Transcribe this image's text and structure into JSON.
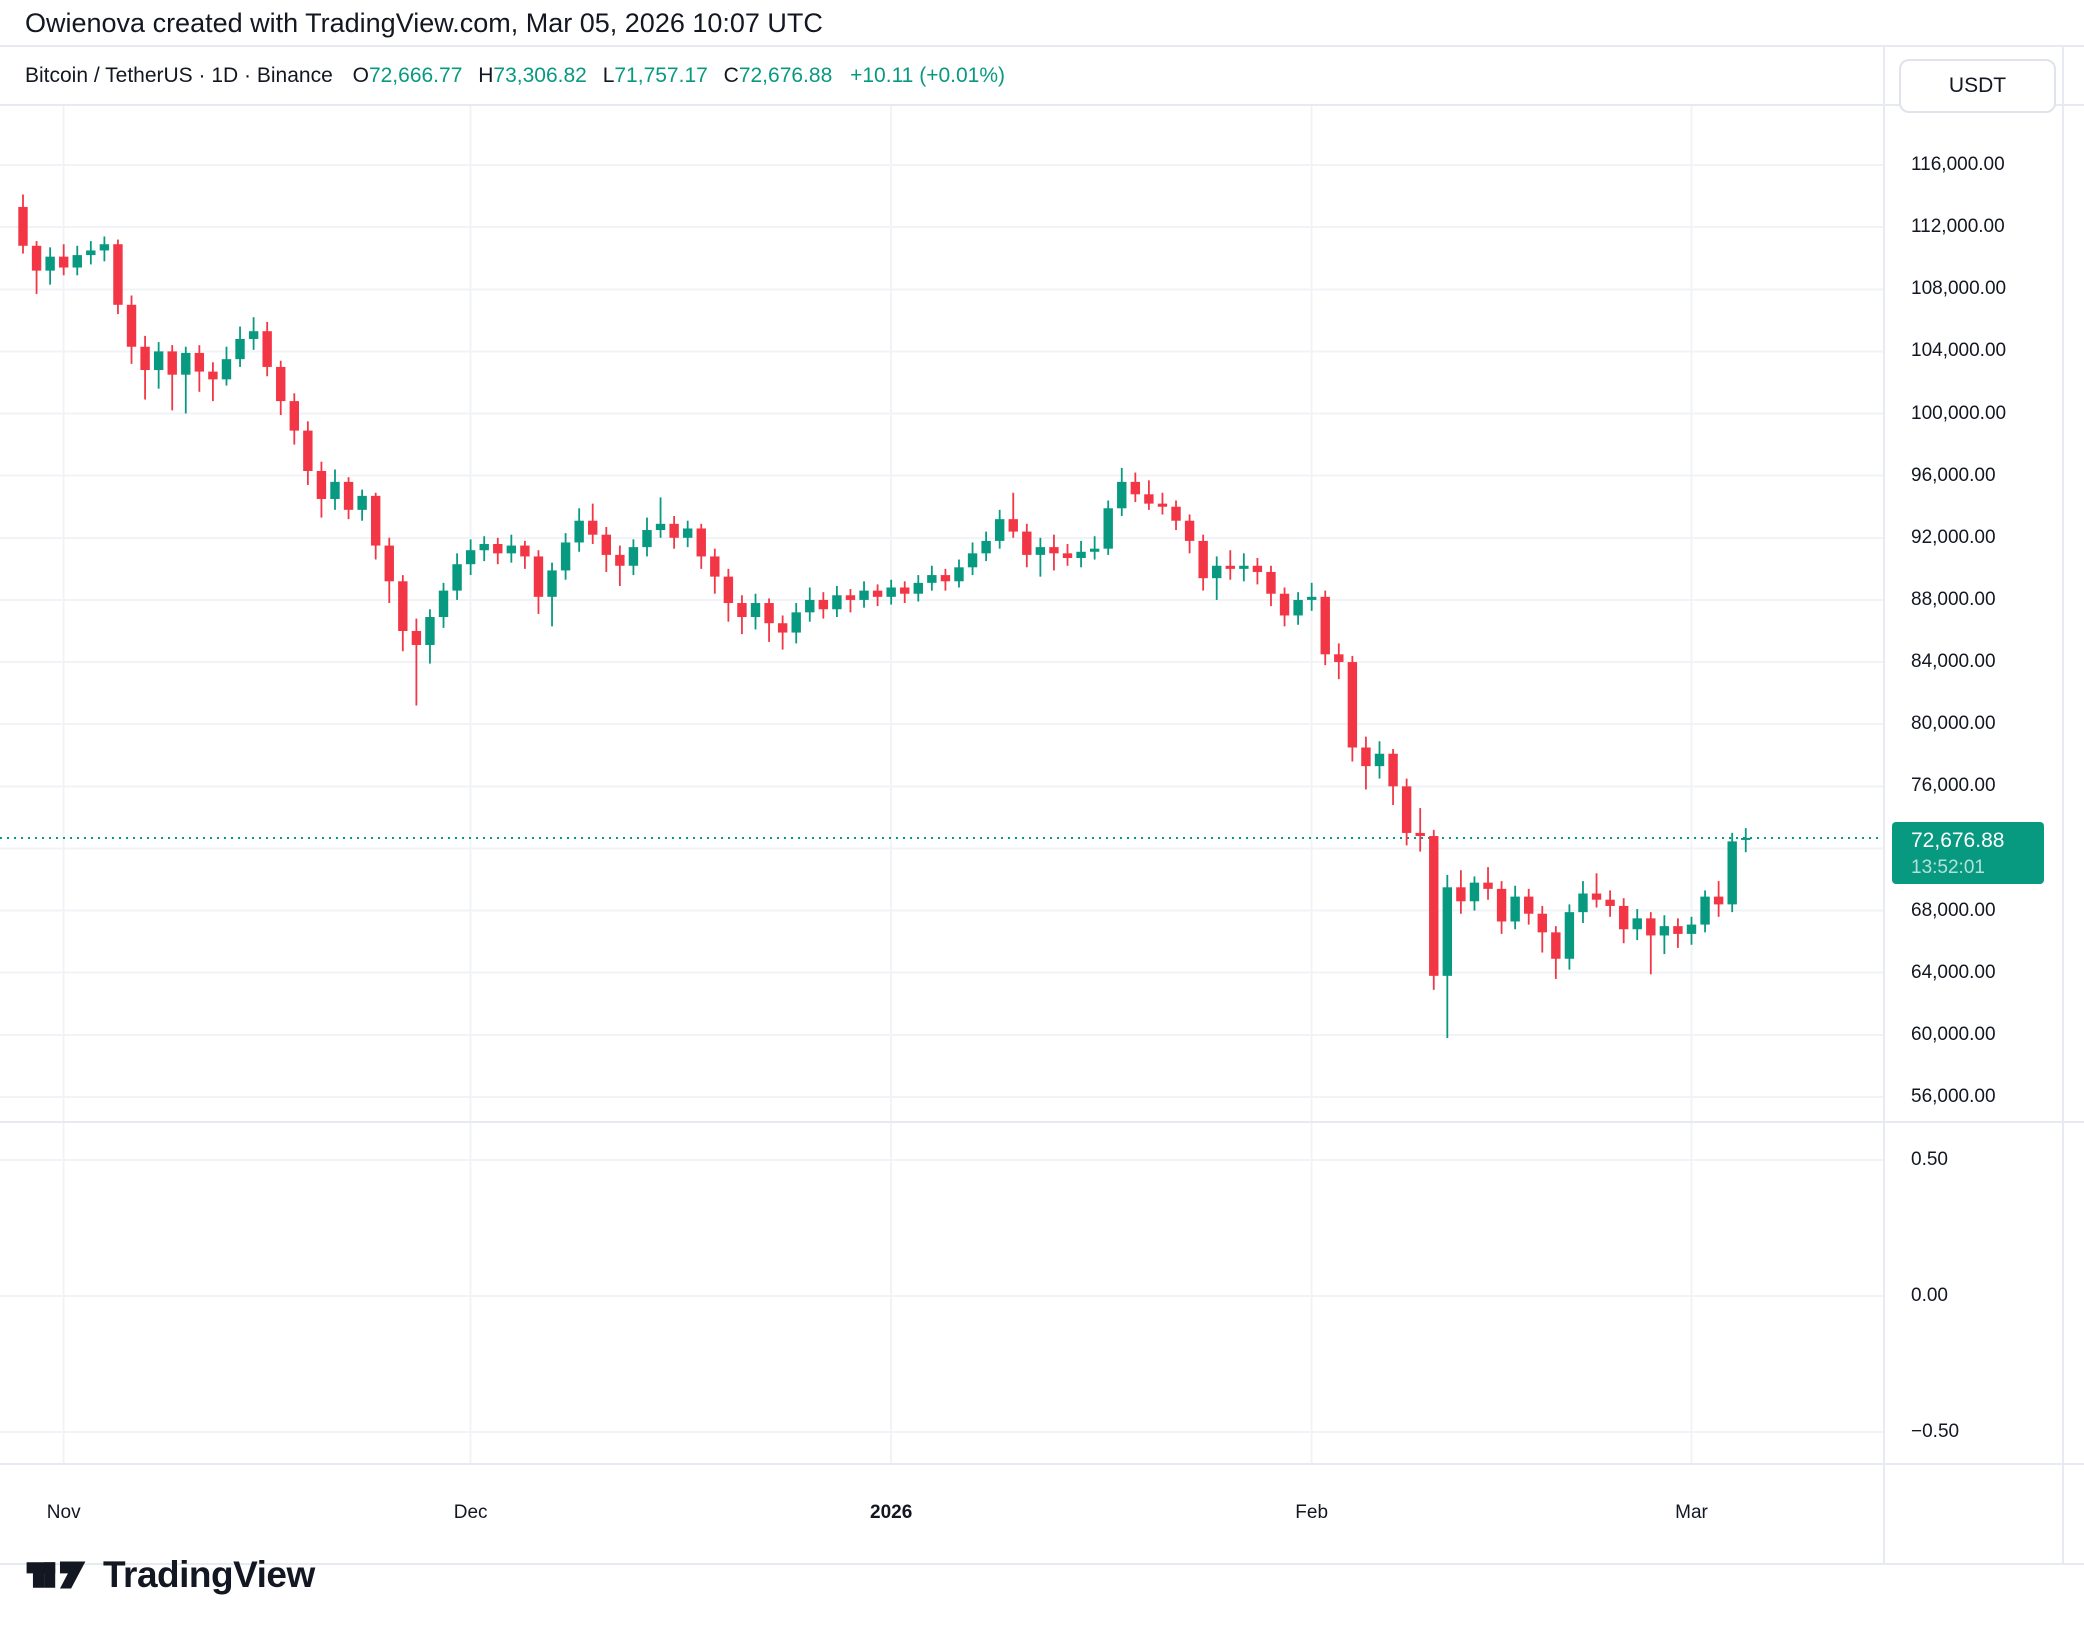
{
  "attribution": "Owienova created with TradingView.com, Mar 05, 2026 10:07 UTC",
  "legend": {
    "symbol_title": "Bitcoin / TetherUS · 1D · Binance",
    "open_label": "O",
    "open": "72,666.77",
    "high_label": "H",
    "high": "73,306.82",
    "low_label": "L",
    "low": "71,757.17",
    "close_label": "C",
    "close": "72,676.88",
    "change": "+10.11 (+0.01%)"
  },
  "unit_button": "USDT",
  "price_label": {
    "price": "72,676.88",
    "countdown": "13:52:01"
  },
  "footer": {
    "brand": "TradingView"
  },
  "colors": {
    "up": "#089981",
    "down": "#f23645",
    "text": "#131722",
    "grid": "#f2f3f7",
    "border": "#e7eaf0",
    "current_line": "#089981"
  },
  "chart_data": {
    "type": "candlestick",
    "title": "Bitcoin / TetherUS",
    "interval": "1D",
    "exchange": "Binance",
    "quote_unit": "USDT",
    "current_price": 72676.88,
    "countdown": "13:52:01",
    "price_axis_ticks": [
      116000,
      112000,
      108000,
      104000,
      100000,
      96000,
      92000,
      88000,
      84000,
      80000,
      76000,
      72000,
      68000,
      64000,
      60000,
      56000
    ],
    "price_axis_range": [
      54000,
      118500
    ],
    "indicator_axis_ticks": [
      {
        "value": 0.5,
        "label": "0.50"
      },
      {
        "value": 0.0,
        "label": "0.00"
      },
      {
        "value": -0.5,
        "label": "−0.50"
      }
    ],
    "time_ticks": [
      {
        "label": "Nov",
        "index": 3,
        "bold": false
      },
      {
        "label": "Dec",
        "index": 33,
        "bold": false
      },
      {
        "label": "2026",
        "index": 64,
        "bold": true
      },
      {
        "label": "Feb",
        "index": 95,
        "bold": false
      },
      {
        "label": "Mar",
        "index": 123,
        "bold": false
      }
    ],
    "ohlc_columns": [
      "date",
      "open",
      "high",
      "low",
      "close"
    ],
    "ohlc": [
      [
        "2025-10-29",
        113300,
        114100,
        110300,
        110800
      ],
      [
        "2025-10-30",
        110800,
        111100,
        107700,
        109200
      ],
      [
        "2025-10-31",
        109200,
        110700,
        108300,
        110100
      ],
      [
        "2025-11-01",
        110100,
        110900,
        108900,
        109400
      ],
      [
        "2025-11-02",
        109400,
        110800,
        108900,
        110200
      ],
      [
        "2025-11-03",
        110200,
        111100,
        109600,
        110500
      ],
      [
        "2025-11-04",
        110500,
        111400,
        109800,
        110900
      ],
      [
        "2025-11-05",
        110900,
        111200,
        106400,
        107000
      ],
      [
        "2025-11-06",
        107000,
        107600,
        103200,
        104300
      ],
      [
        "2025-11-07",
        104300,
        105000,
        100900,
        102800
      ],
      [
        "2025-11-08",
        102800,
        104600,
        101600,
        104000
      ],
      [
        "2025-11-09",
        104000,
        104400,
        100200,
        102500
      ],
      [
        "2025-11-10",
        102500,
        104300,
        100000,
        103900
      ],
      [
        "2025-11-11",
        103900,
        104400,
        101400,
        102700
      ],
      [
        "2025-11-12",
        102700,
        103300,
        100800,
        102200
      ],
      [
        "2025-11-13",
        102200,
        104300,
        101800,
        103500
      ],
      [
        "2025-11-14",
        103500,
        105600,
        103000,
        104800
      ],
      [
        "2025-11-15",
        104800,
        106200,
        104100,
        105300
      ],
      [
        "2025-11-16",
        105300,
        105900,
        102400,
        103000
      ],
      [
        "2025-11-17",
        103000,
        103400,
        99900,
        100800
      ],
      [
        "2025-11-18",
        100800,
        101300,
        98000,
        98900
      ],
      [
        "2025-11-19",
        98900,
        99500,
        95400,
        96300
      ],
      [
        "2025-11-20",
        96300,
        96900,
        93300,
        94500
      ],
      [
        "2025-11-21",
        94500,
        96400,
        93800,
        95600
      ],
      [
        "2025-11-22",
        95600,
        95900,
        93200,
        93800
      ],
      [
        "2025-11-23",
        93800,
        95100,
        93100,
        94700
      ],
      [
        "2025-11-24",
        94700,
        94900,
        90600,
        91500
      ],
      [
        "2025-11-25",
        91500,
        92000,
        87800,
        89200
      ],
      [
        "2025-11-26",
        89200,
        89600,
        84700,
        86000
      ],
      [
        "2025-11-27",
        86000,
        86800,
        81200,
        85100
      ],
      [
        "2025-11-28",
        85100,
        87400,
        83900,
        86900
      ],
      [
        "2025-11-29",
        86900,
        89100,
        86200,
        88600
      ],
      [
        "2025-11-30",
        88600,
        91000,
        88000,
        90300
      ],
      [
        "2025-12-01",
        90300,
        91900,
        89600,
        91200
      ],
      [
        "2025-12-02",
        91200,
        92100,
        90500,
        91600
      ],
      [
        "2025-12-03",
        91600,
        92000,
        90300,
        91000
      ],
      [
        "2025-12-04",
        91000,
        92200,
        90400,
        91500
      ],
      [
        "2025-12-05",
        91500,
        91800,
        90000,
        90800
      ],
      [
        "2025-12-06",
        90800,
        91200,
        87100,
        88200
      ],
      [
        "2025-12-07",
        88200,
        90400,
        86300,
        89900
      ],
      [
        "2025-12-08",
        89900,
        92300,
        89300,
        91700
      ],
      [
        "2025-12-09",
        91700,
        93900,
        91100,
        93100
      ],
      [
        "2025-12-10",
        93100,
        94200,
        91600,
        92200
      ],
      [
        "2025-12-11",
        92200,
        92700,
        89800,
        90900
      ],
      [
        "2025-12-12",
        90900,
        91500,
        88900,
        90200
      ],
      [
        "2025-12-13",
        90200,
        91900,
        89600,
        91400
      ],
      [
        "2025-12-14",
        91400,
        93300,
        90800,
        92500
      ],
      [
        "2025-12-15",
        92500,
        94600,
        92000,
        92900
      ],
      [
        "2025-12-16",
        92900,
        93400,
        91300,
        92000
      ],
      [
        "2025-12-17",
        92000,
        93100,
        91400,
        92600
      ],
      [
        "2025-12-18",
        92600,
        92900,
        90000,
        90800
      ],
      [
        "2025-12-19",
        90800,
        91300,
        88400,
        89500
      ],
      [
        "2025-12-20",
        89500,
        90000,
        86600,
        87800
      ],
      [
        "2025-12-21",
        87800,
        88300,
        85800,
        86900
      ],
      [
        "2025-12-22",
        86900,
        88400,
        86100,
        87800
      ],
      [
        "2025-12-23",
        87800,
        88100,
        85300,
        86500
      ],
      [
        "2025-12-24",
        86500,
        87000,
        84800,
        85900
      ],
      [
        "2025-12-25",
        85900,
        87800,
        85200,
        87200
      ],
      [
        "2025-12-26",
        87200,
        88800,
        86600,
        88000
      ],
      [
        "2025-12-27",
        88000,
        88500,
        86800,
        87400
      ],
      [
        "2025-12-28",
        87400,
        88900,
        86900,
        88300
      ],
      [
        "2025-12-29",
        88300,
        88700,
        87200,
        88000
      ],
      [
        "2025-12-30",
        88000,
        89200,
        87500,
        88600
      ],
      [
        "2025-12-31",
        88600,
        89000,
        87600,
        88200
      ],
      [
        "2026-01-01",
        88200,
        89300,
        87700,
        88800
      ],
      [
        "2026-01-02",
        88800,
        89200,
        87800,
        88400
      ],
      [
        "2026-01-03",
        88400,
        89600,
        87900,
        89100
      ],
      [
        "2026-01-04",
        89100,
        90200,
        88600,
        89600
      ],
      [
        "2026-01-05",
        89600,
        90000,
        88600,
        89200
      ],
      [
        "2026-01-06",
        89200,
        90600,
        88800,
        90100
      ],
      [
        "2026-01-07",
        90100,
        91700,
        89600,
        91000
      ],
      [
        "2026-01-08",
        91000,
        92400,
        90500,
        91800
      ],
      [
        "2026-01-09",
        91800,
        93800,
        91300,
        93200
      ],
      [
        "2026-01-10",
        93200,
        94900,
        92000,
        92400
      ],
      [
        "2026-01-11",
        92400,
        92900,
        90100,
        90900
      ],
      [
        "2026-01-12",
        90900,
        92000,
        89500,
        91400
      ],
      [
        "2026-01-13",
        91400,
        92200,
        89900,
        91000
      ],
      [
        "2026-01-14",
        91000,
        91600,
        90200,
        90700
      ],
      [
        "2026-01-15",
        90700,
        91800,
        90100,
        91100
      ],
      [
        "2026-01-16",
        91100,
        92100,
        90600,
        91300
      ],
      [
        "2026-01-17",
        91300,
        94400,
        90900,
        93900
      ],
      [
        "2026-01-18",
        93900,
        96500,
        93400,
        95600
      ],
      [
        "2026-01-19",
        95600,
        96200,
        94300,
        94800
      ],
      [
        "2026-01-20",
        94800,
        95700,
        93800,
        94200
      ],
      [
        "2026-01-21",
        94200,
        94900,
        93500,
        94000
      ],
      [
        "2026-01-22",
        94000,
        94400,
        92500,
        93100
      ],
      [
        "2026-01-23",
        93100,
        93500,
        91000,
        91800
      ],
      [
        "2026-01-24",
        91800,
        92200,
        88600,
        89400
      ],
      [
        "2026-01-25",
        89400,
        90800,
        88000,
        90200
      ],
      [
        "2026-01-26",
        90200,
        91200,
        89300,
        90000
      ],
      [
        "2026-01-27",
        90000,
        91000,
        89200,
        90200
      ],
      [
        "2026-01-28",
        90200,
        90700,
        89000,
        89800
      ],
      [
        "2026-01-29",
        89800,
        90200,
        87600,
        88400
      ],
      [
        "2026-01-30",
        88400,
        88800,
        86300,
        87000
      ],
      [
        "2026-01-31",
        87000,
        88500,
        86400,
        88000
      ],
      [
        "2026-02-01",
        88000,
        89100,
        87300,
        88200
      ],
      [
        "2026-02-02",
        88200,
        88600,
        83800,
        84500
      ],
      [
        "2026-02-03",
        84500,
        85200,
        82900,
        84000
      ],
      [
        "2026-02-04",
        84000,
        84400,
        77600,
        78500
      ],
      [
        "2026-02-05",
        78500,
        79200,
        75800,
        77300
      ],
      [
        "2026-02-06",
        77300,
        78900,
        76500,
        78100
      ],
      [
        "2026-02-07",
        78100,
        78400,
        74800,
        76000
      ],
      [
        "2026-02-08",
        76000,
        76500,
        72200,
        73000
      ],
      [
        "2026-02-09",
        73000,
        74600,
        71800,
        72800
      ],
      [
        "2026-02-10",
        72800,
        73200,
        62900,
        63800
      ],
      [
        "2026-02-11",
        63800,
        70300,
        59800,
        69500
      ],
      [
        "2026-02-12",
        69500,
        70600,
        67800,
        68600
      ],
      [
        "2026-02-13",
        68600,
        70200,
        68000,
        69800
      ],
      [
        "2026-02-14",
        69800,
        70800,
        68700,
        69400
      ],
      [
        "2026-02-15",
        69400,
        69900,
        66500,
        67300
      ],
      [
        "2026-02-16",
        67300,
        69600,
        66800,
        68900
      ],
      [
        "2026-02-17",
        68900,
        69400,
        67100,
        67800
      ],
      [
        "2026-02-18",
        67800,
        68300,
        65300,
        66600
      ],
      [
        "2026-02-19",
        66600,
        67000,
        63600,
        64900
      ],
      [
        "2026-02-20",
        64900,
        68400,
        64200,
        67900
      ],
      [
        "2026-02-21",
        67900,
        69900,
        67200,
        69100
      ],
      [
        "2026-02-22",
        69100,
        70400,
        68200,
        68700
      ],
      [
        "2026-02-23",
        68700,
        69300,
        67600,
        68300
      ],
      [
        "2026-02-24",
        68300,
        68800,
        65900,
        66800
      ],
      [
        "2026-02-25",
        66800,
        68100,
        66100,
        67500
      ],
      [
        "2026-02-26",
        67500,
        67900,
        63900,
        66400
      ],
      [
        "2026-02-27",
        66400,
        67700,
        65200,
        67000
      ],
      [
        "2026-02-28",
        67000,
        67500,
        65600,
        66500
      ],
      [
        "2026-03-01",
        66500,
        67600,
        65800,
        67100
      ],
      [
        "2026-03-02",
        67100,
        69300,
        66600,
        68900
      ],
      [
        "2026-03-03",
        68900,
        69900,
        67600,
        68400
      ],
      [
        "2026-03-04",
        68400,
        73000,
        67900,
        72456
      ],
      [
        "2026-03-05",
        72666.77,
        73306.82,
        71757.17,
        72676.88
      ]
    ]
  }
}
